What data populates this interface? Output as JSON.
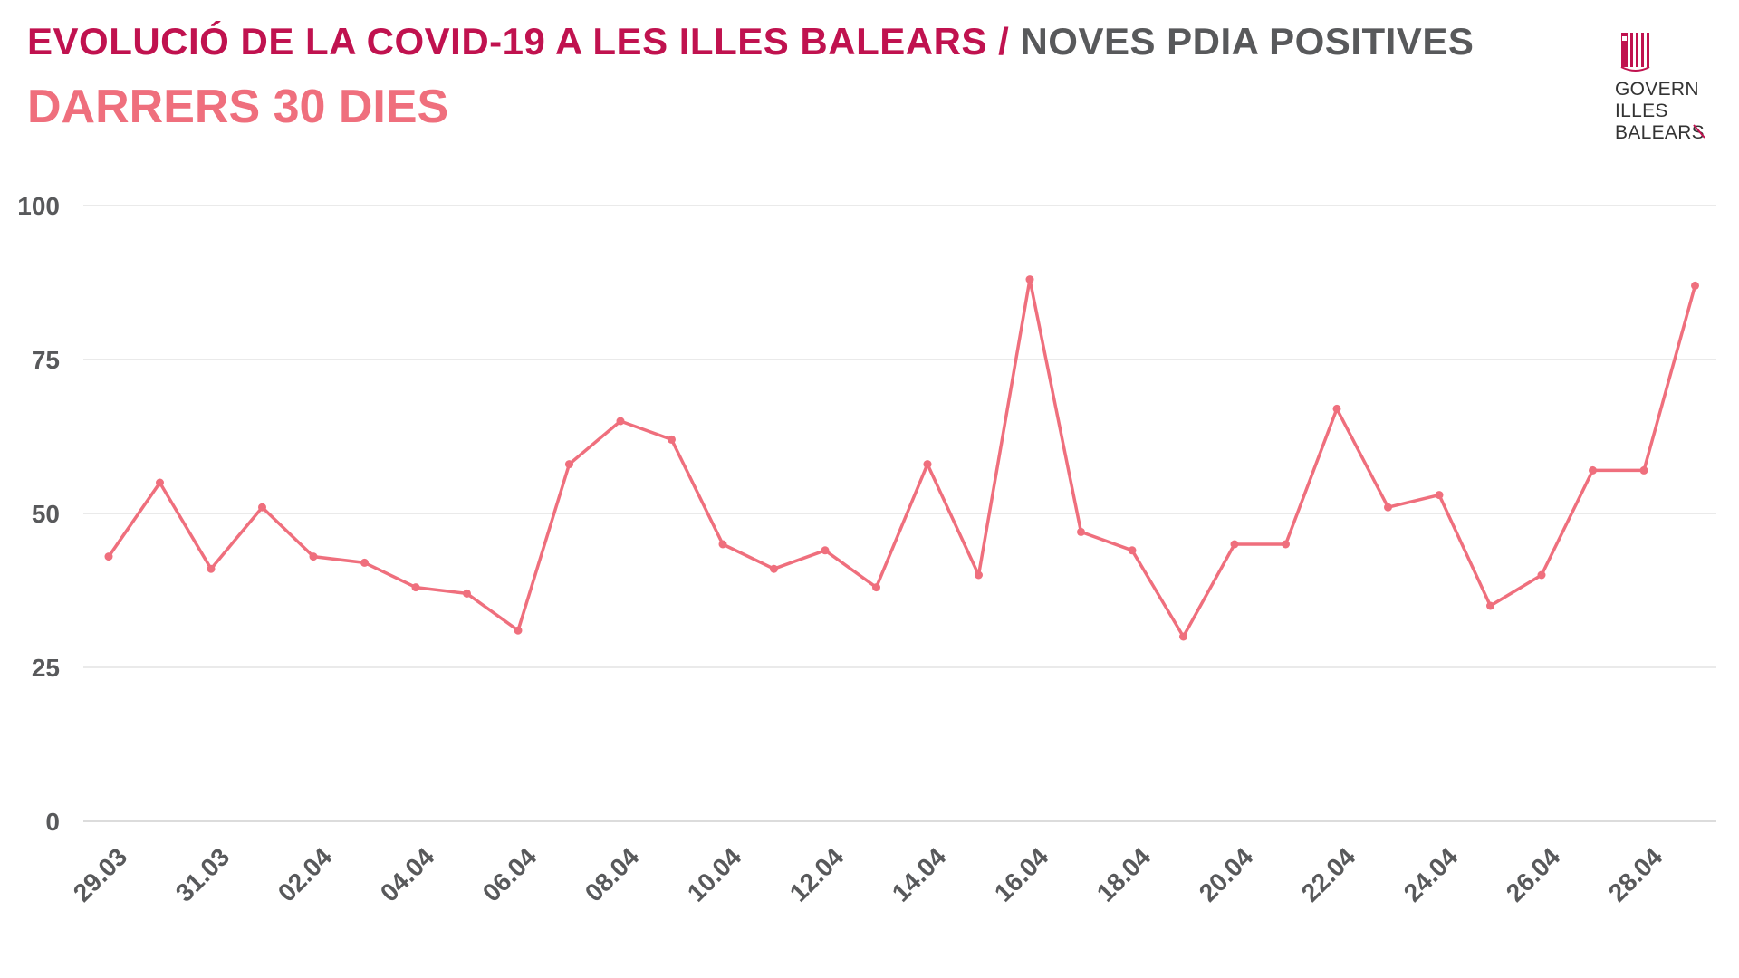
{
  "header": {
    "title_main": "EVOLUCIÓ DE LA COVID-19 A LES ILLES BALEARS",
    "title_separator": "/",
    "title_right": "NOVES PDIA POSITIVES",
    "subtitle": "DARRERS 30 DIES"
  },
  "logo": {
    "icon": "balearic-flag-icon",
    "lines": [
      "GOVERN",
      "ILLES",
      "BALEARS"
    ]
  },
  "colors": {
    "title_main": "#c0124f",
    "title_right": "#58595b",
    "subtitle": "#ef6f7d",
    "series": "#ef6f7d",
    "grid": "#e4e4e4",
    "tick_labels": "#58595b"
  },
  "chart_data": {
    "type": "line",
    "title": "EVOLUCIÓ DE LA COVID-19 A LES ILLES BALEARS / NOVES PDIA POSITIVES",
    "subtitle": "DARRERS 30 DIES",
    "xlabel": "",
    "ylabel": "",
    "ylim": [
      0,
      100
    ],
    "yticks": [
      0,
      25,
      50,
      75,
      100
    ],
    "grid": "horizontal",
    "legend": "none",
    "x": [
      "29.03",
      "30.03",
      "31.03",
      "01.04",
      "02.04",
      "03.04",
      "04.04",
      "05.04",
      "06.04",
      "07.04",
      "08.04",
      "09.04",
      "10.04",
      "11.04",
      "12.04",
      "13.04",
      "14.04",
      "15.04",
      "16.04",
      "17.04",
      "18.04",
      "19.04",
      "20.04",
      "21.04",
      "22.04",
      "23.04",
      "24.04",
      "25.04",
      "26.04",
      "27.04",
      "28.04",
      "29.04"
    ],
    "xtick_labels": [
      "29.03",
      "31.03",
      "02.04",
      "04.04",
      "06.04",
      "08.04",
      "10.04",
      "12.04",
      "14.04",
      "16.04",
      "18.04",
      "20.04",
      "22.04",
      "24.04",
      "26.04",
      "28.04"
    ],
    "series": [
      {
        "values": [
          43,
          55,
          41,
          51,
          43,
          42,
          38,
          37,
          31,
          58,
          65,
          62,
          45,
          41,
          44,
          38,
          58,
          40,
          88,
          47,
          44,
          30,
          45,
          45,
          67,
          51,
          53,
          35,
          40,
          57,
          57,
          87
        ]
      }
    ]
  }
}
